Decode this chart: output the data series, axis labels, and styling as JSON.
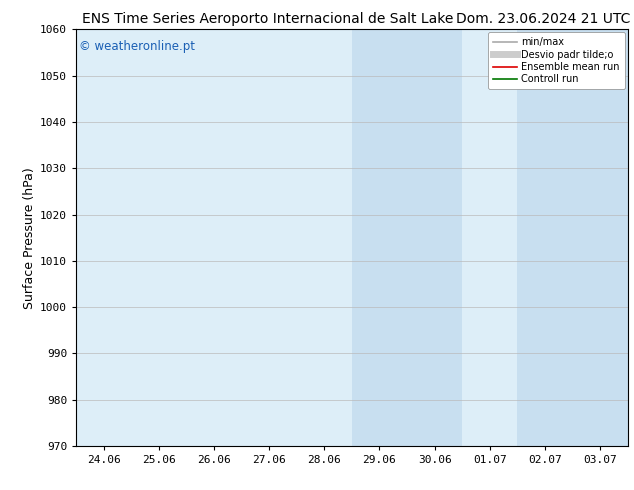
{
  "title_left": "ENS Time Series Aeroporto Internacional de Salt Lake",
  "title_right": "Dom. 23.06.2024 21 UTC",
  "ylabel": "Surface Pressure (hPa)",
  "ylim": [
    970,
    1060
  ],
  "yticks": [
    970,
    980,
    990,
    1000,
    1010,
    1020,
    1030,
    1040,
    1050,
    1060
  ],
  "xtick_labels": [
    "24.06",
    "25.06",
    "26.06",
    "27.06",
    "28.06",
    "29.06",
    "30.06",
    "01.07",
    "02.07",
    "03.07"
  ],
  "watermark": "© weatheronline.pt",
  "watermark_color": "#1a5fb4",
  "bg_color": "#ffffff",
  "plot_bg_color": "#ddeef8",
  "shaded_regions": [
    {
      "xstart": -0.5,
      "xend": 0.0,
      "color": "#ddeef8"
    },
    {
      "xstart": 4.5,
      "xend": 6.5,
      "color": "#c8dff0"
    },
    {
      "xstart": 7.5,
      "xend": 9.5,
      "color": "#c8dff0"
    }
  ],
  "legend_items": [
    {
      "label": "min/max",
      "color": "#aaaaaa",
      "lw": 1.2,
      "ls": "-"
    },
    {
      "label": "Desvio padr tilde;o",
      "color": "#cccccc",
      "lw": 5,
      "ls": "-"
    },
    {
      "label": "Ensemble mean run",
      "color": "#dd0000",
      "lw": 1.2,
      "ls": "-"
    },
    {
      "label": "Controll run",
      "color": "#007700",
      "lw": 1.2,
      "ls": "-"
    }
  ],
  "title_fontsize": 10,
  "tick_fontsize": 8,
  "ylabel_fontsize": 9,
  "watermark_fontsize": 8.5
}
